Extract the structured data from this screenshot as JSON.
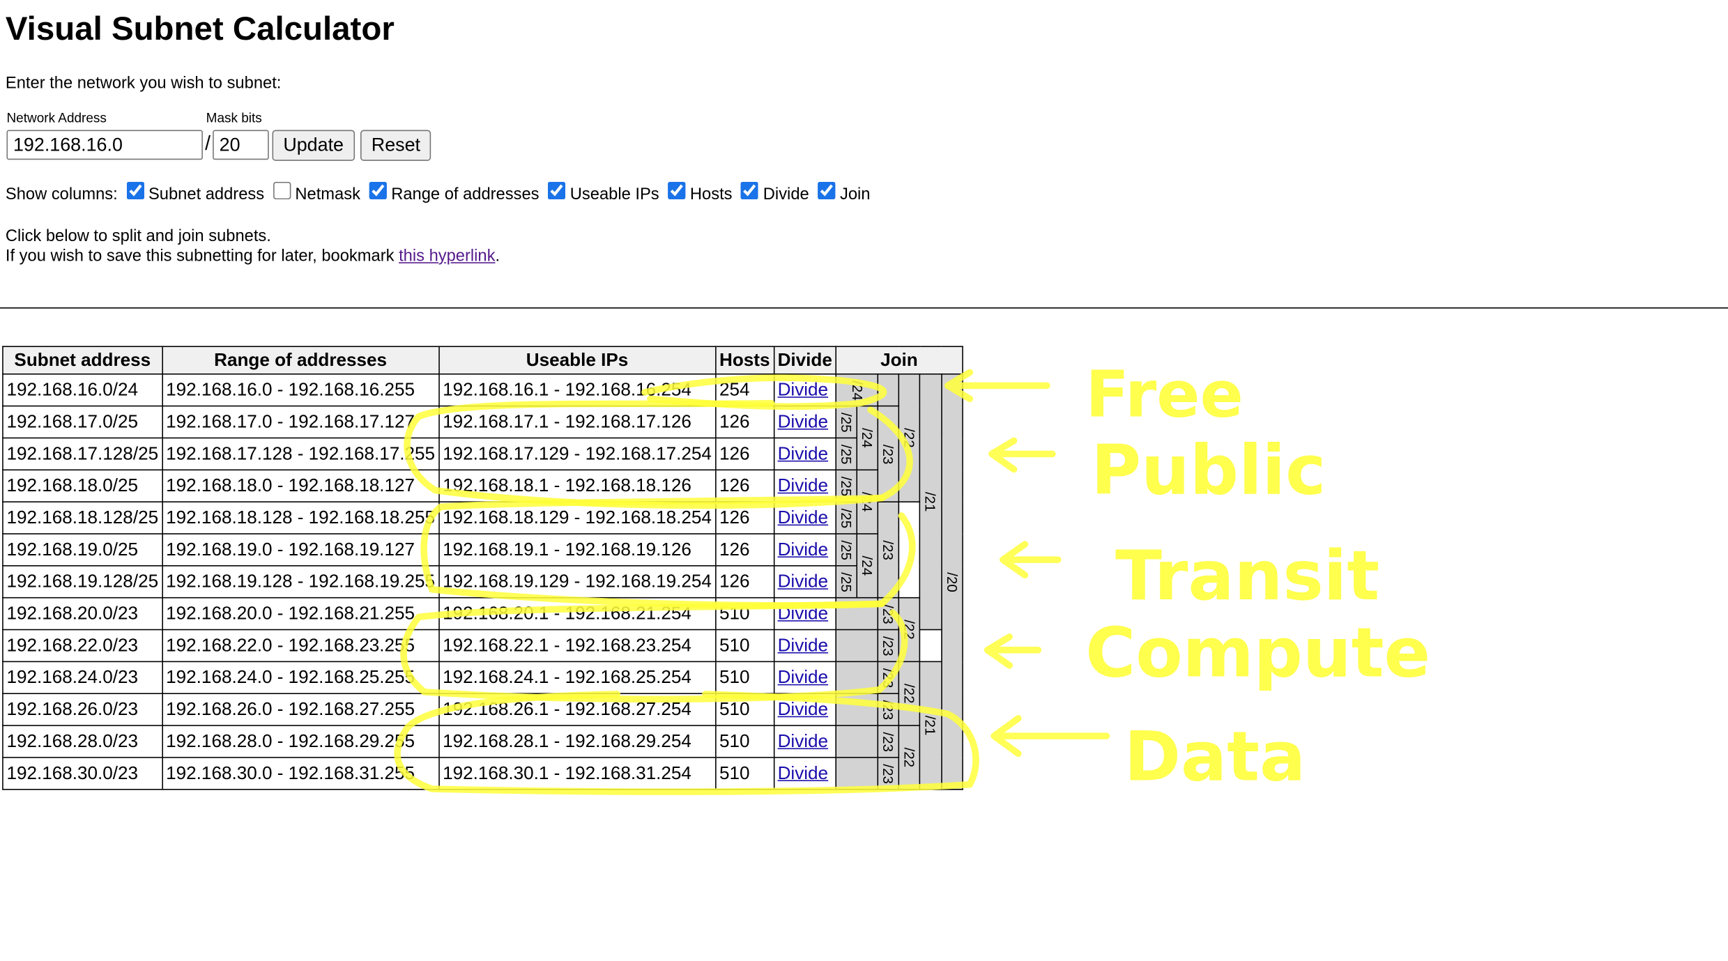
{
  "title": "Visual Subnet Calculator",
  "intro": "Enter the network you wish to subnet:",
  "form": {
    "network_label": "Network Address",
    "network_value": "192.168.16.0",
    "mask_label": "Mask bits",
    "slash": "/",
    "mask_value": "20",
    "update_label": "Update",
    "reset_label": "Reset"
  },
  "show_columns": {
    "label": "Show columns:",
    "options": [
      {
        "label": "Subnet address",
        "checked": true
      },
      {
        "label": "Netmask",
        "checked": false
      },
      {
        "label": "Range of addresses",
        "checked": true
      },
      {
        "label": "Useable IPs",
        "checked": true
      },
      {
        "label": "Hosts",
        "checked": true
      },
      {
        "label": "Divide",
        "checked": true
      },
      {
        "label": "Join",
        "checked": true
      }
    ]
  },
  "help": {
    "line1": "Click below to split and join subnets.",
    "line2_prefix": "If you wish to save this subnetting for later, bookmark ",
    "line2_link": "this hyperlink",
    "line2_suffix": "."
  },
  "table": {
    "headers": [
      "Subnet address",
      "Range of addresses",
      "Useable IPs",
      "Hosts",
      "Divide",
      "Join"
    ],
    "rows": [
      {
        "subnet": "192.168.16.0/24",
        "range": "192.168.16.0 - 192.168.16.255",
        "useable": "192.168.16.1 - 192.168.16.254",
        "hosts": "254",
        "divide": "Divide"
      },
      {
        "subnet": "192.168.17.0/25",
        "range": "192.168.17.0 - 192.168.17.127",
        "useable": "192.168.17.1 - 192.168.17.126",
        "hosts": "126",
        "divide": "Divide"
      },
      {
        "subnet": "192.168.17.128/25",
        "range": "192.168.17.128 - 192.168.17.255",
        "useable": "192.168.17.129 - 192.168.17.254",
        "hosts": "126",
        "divide": "Divide"
      },
      {
        "subnet": "192.168.18.0/25",
        "range": "192.168.18.0 - 192.168.18.127",
        "useable": "192.168.18.1 - 192.168.18.126",
        "hosts": "126",
        "divide": "Divide"
      },
      {
        "subnet": "192.168.18.128/25",
        "range": "192.168.18.128 - 192.168.18.255",
        "useable": "192.168.18.129 - 192.168.18.254",
        "hosts": "126",
        "divide": "Divide"
      },
      {
        "subnet": "192.168.19.0/25",
        "range": "192.168.19.0 - 192.168.19.127",
        "useable": "192.168.19.1 - 192.168.19.126",
        "hosts": "126",
        "divide": "Divide"
      },
      {
        "subnet": "192.168.19.128/25",
        "range": "192.168.19.128 - 192.168.19.255",
        "useable": "192.168.19.129 - 192.168.19.254",
        "hosts": "126",
        "divide": "Divide"
      },
      {
        "subnet": "192.168.20.0/23",
        "range": "192.168.20.0 - 192.168.21.255",
        "useable": "192.168.20.1 - 192.168.21.254",
        "hosts": "510",
        "divide": "Divide"
      },
      {
        "subnet": "192.168.22.0/23",
        "range": "192.168.22.0 - 192.168.23.255",
        "useable": "192.168.22.1 - 192.168.23.254",
        "hosts": "510",
        "divide": "Divide"
      },
      {
        "subnet": "192.168.24.0/23",
        "range": "192.168.24.0 - 192.168.25.255",
        "useable": "192.168.24.1 - 192.168.25.254",
        "hosts": "510",
        "divide": "Divide"
      },
      {
        "subnet": "192.168.26.0/23",
        "range": "192.168.26.0 - 192.168.27.255",
        "useable": "192.168.26.1 - 192.168.27.254",
        "hosts": "510",
        "divide": "Divide"
      },
      {
        "subnet": "192.168.28.0/23",
        "range": "192.168.28.0 - 192.168.29.255",
        "useable": "192.168.28.1 - 192.168.29.254",
        "hosts": "510",
        "divide": "Divide"
      },
      {
        "subnet": "192.168.30.0/23",
        "range": "192.168.30.0 - 192.168.31.255",
        "useable": "192.168.30.1 - 192.168.31.254",
        "hosts": "510",
        "divide": "Divide"
      }
    ],
    "join_labels": {
      "r0_24": "/24",
      "r1_25": "/25",
      "r1_24": "/24",
      "r1_23": "/23",
      "r2_25": "/25",
      "r0_22": "/22",
      "r3_25": "/25",
      "r3_24": "/24",
      "r4_25": "/25",
      "r0_21": "/21",
      "r5_25": "/25",
      "r5_24": "/24",
      "r5_23": "/23",
      "r6_25": "/25",
      "r0_20": "/20",
      "r7_23": "/23",
      "r7_22": "/22",
      "r8_23": "/23",
      "r9_23": "/23",
      "r9_22": "/22",
      "r9_21": "/21",
      "r10_23": "/23",
      "r11_23": "/23",
      "r11_22": "/22",
      "r12_23": "/23"
    }
  },
  "annotations": {
    "color": "#ffff3a",
    "labels": [
      "Free",
      "Public",
      "Transit",
      "Compute",
      "Data"
    ]
  }
}
